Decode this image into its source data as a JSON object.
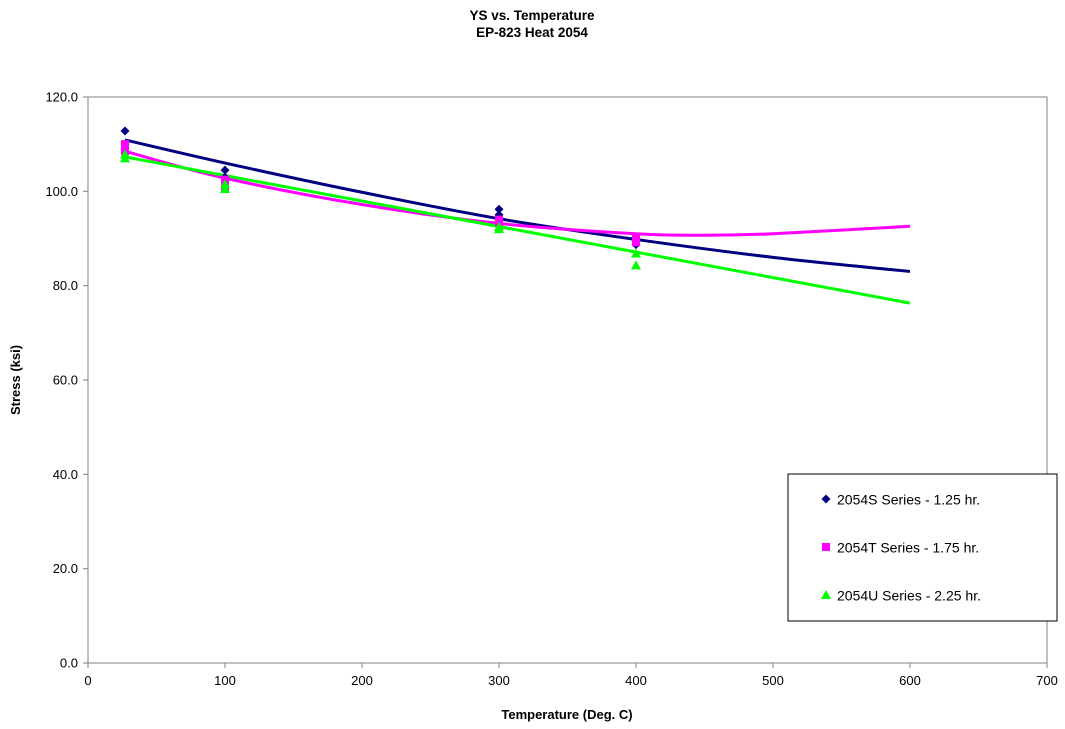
{
  "chart_data": {
    "type": "scatter",
    "title": "YS vs. Temperature",
    "subtitle": "EP-823 Heat 2054",
    "xlabel": "Temperature (Deg. C)",
    "ylabel": "Stress (ksi)",
    "xlim": [
      0,
      700
    ],
    "ylim": [
      0,
      120
    ],
    "x_ticks": [
      "0",
      "100",
      "200",
      "300",
      "400",
      "500",
      "600",
      "700"
    ],
    "y_ticks": [
      "0.0",
      "20.0",
      "40.0",
      "60.0",
      "80.0",
      "100.0",
      "120.0"
    ],
    "grid": false,
    "legend_position": "right-bottom",
    "series": [
      {
        "name": "2054S Series - 1.25 hr.",
        "marker": "diamond",
        "color": "#000080",
        "points": [
          {
            "x": 27,
            "y": 112.8
          },
          {
            "x": 27,
            "y": 110.0
          },
          {
            "x": 100,
            "y": 104.5
          },
          {
            "x": 100,
            "y": 103.0
          },
          {
            "x": 300,
            "y": 96.2
          },
          {
            "x": 300,
            "y": 95.0
          },
          {
            "x": 400,
            "y": 89.5
          },
          {
            "x": 400,
            "y": 88.7
          }
        ],
        "trendline": [
          {
            "x": 27,
            "y": 110.9
          },
          {
            "x": 100,
            "y": 106.0
          },
          {
            "x": 200,
            "y": 99.8
          },
          {
            "x": 300,
            "y": 94.2
          },
          {
            "x": 400,
            "y": 89.8
          },
          {
            "x": 500,
            "y": 86.0
          },
          {
            "x": 600,
            "y": 83.0
          }
        ]
      },
      {
        "name": "2054T Series - 1.75 hr.",
        "marker": "square",
        "color": "#FF00FF",
        "points": [
          {
            "x": 27,
            "y": 110.0
          },
          {
            "x": 27,
            "y": 108.5
          },
          {
            "x": 100,
            "y": 102.5
          },
          {
            "x": 100,
            "y": 101.0
          },
          {
            "x": 300,
            "y": 94.0
          },
          {
            "x": 300,
            "y": 93.5
          },
          {
            "x": 400,
            "y": 90.0
          },
          {
            "x": 400,
            "y": 89.2
          }
        ],
        "trendline": [
          {
            "x": 27,
            "y": 108.5
          },
          {
            "x": 100,
            "y": 102.8
          },
          {
            "x": 200,
            "y": 97.2
          },
          {
            "x": 300,
            "y": 93.2
          },
          {
            "x": 400,
            "y": 91.0
          },
          {
            "x": 450,
            "y": 90.7
          },
          {
            "x": 500,
            "y": 91.0
          },
          {
            "x": 600,
            "y": 92.6
          }
        ]
      },
      {
        "name": "2054U Series - 2.25 hr.",
        "marker": "triangle",
        "color": "#00FF00",
        "points": [
          {
            "x": 27,
            "y": 107.8
          },
          {
            "x": 27,
            "y": 107.0
          },
          {
            "x": 100,
            "y": 101.5
          },
          {
            "x": 100,
            "y": 100.5
          },
          {
            "x": 300,
            "y": 92.0
          },
          {
            "x": 300,
            "y": 92.5
          },
          {
            "x": 400,
            "y": 86.8
          },
          {
            "x": 400,
            "y": 84.3
          }
        ],
        "trendline": [
          {
            "x": 27,
            "y": 107.3
          },
          {
            "x": 600,
            "y": 76.3
          }
        ]
      }
    ]
  }
}
